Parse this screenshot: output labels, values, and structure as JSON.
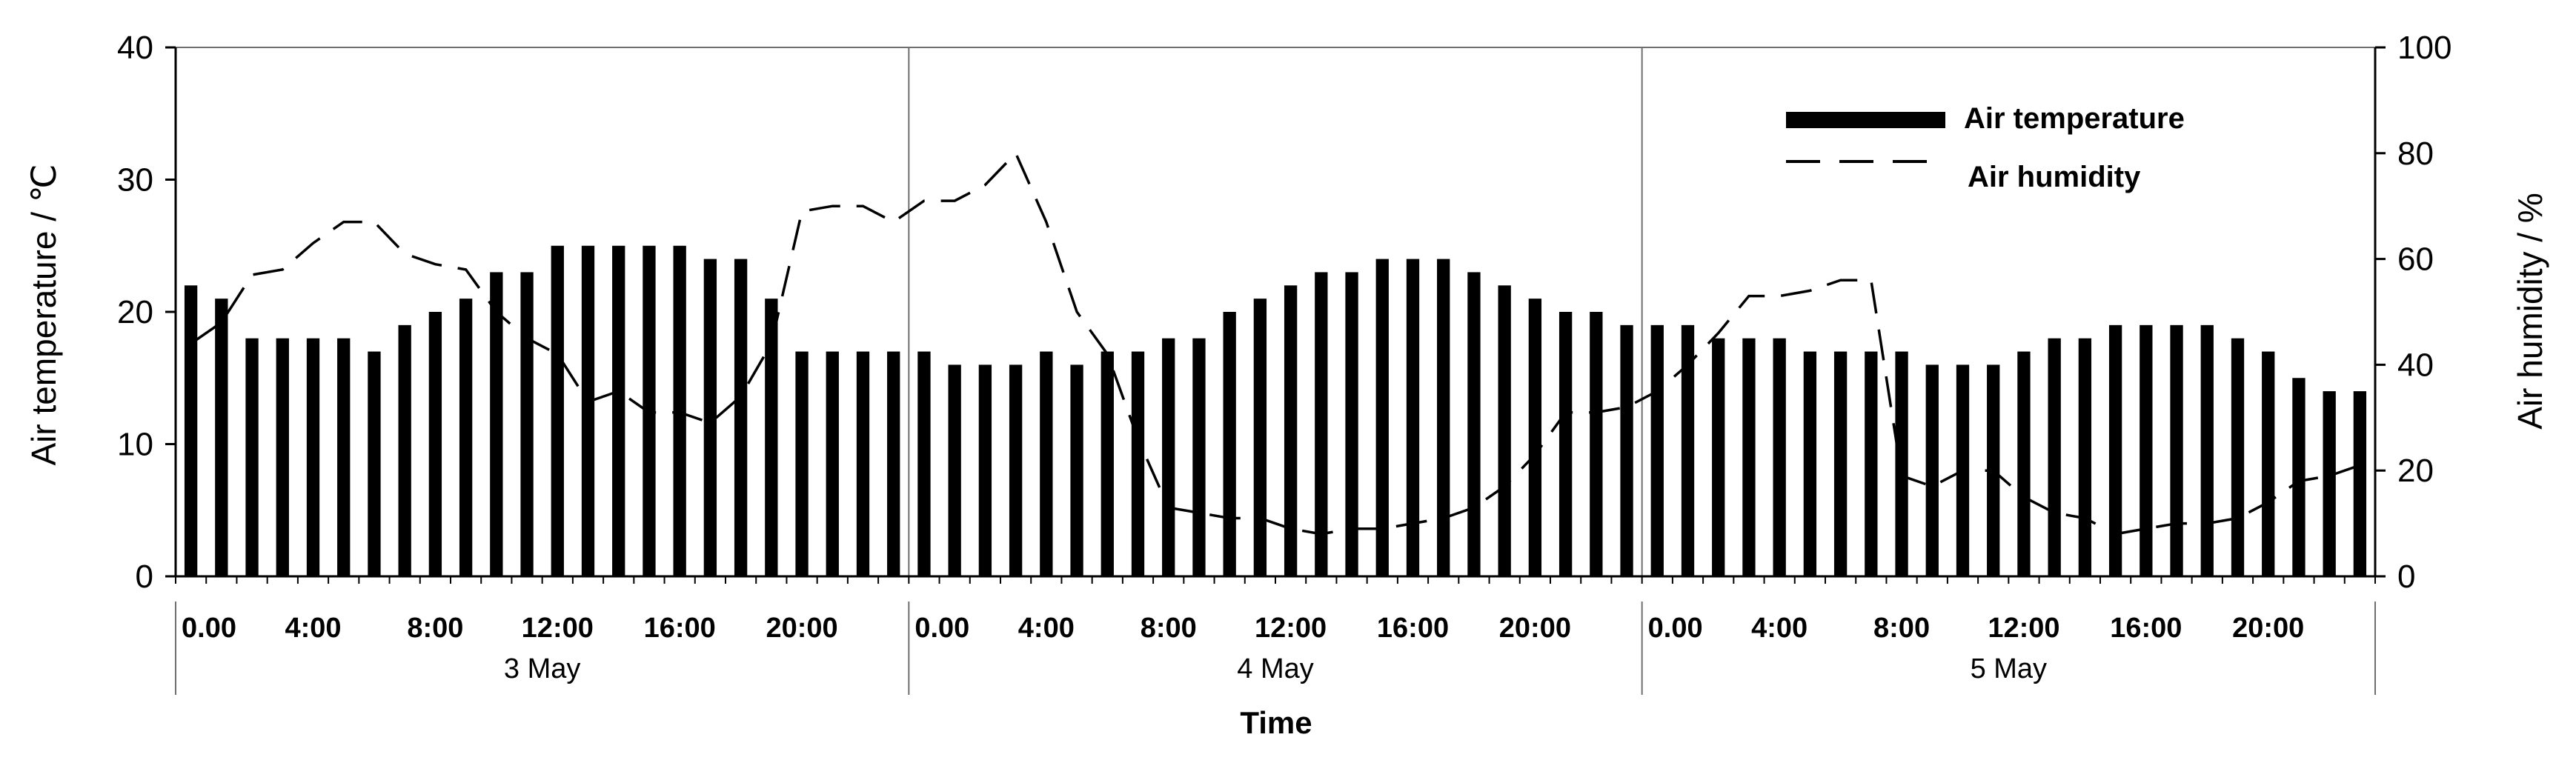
{
  "chart_data": {
    "type": "bar",
    "ylabel_left": "Air temperature / ℃",
    "ylabel_right": "Air humidity / %",
    "xlabel": "Time",
    "ylim_left": [
      0,
      40
    ],
    "ylim_right": [
      0,
      100
    ],
    "yticks_left": [
      "0",
      "10",
      "20",
      "30",
      "40"
    ],
    "yticks_right": [
      "0",
      "20",
      "40",
      "60",
      "80",
      "100"
    ],
    "grid": false,
    "legend_position": "top-right",
    "x_tick_labels": [
      "0.00",
      "4:00",
      "8:00",
      "12:00",
      "16:00",
      "20:00"
    ],
    "days": [
      "3 May",
      "4 May",
      "5 May"
    ],
    "hours_per_day": 24,
    "series": [
      {
        "name": "Air temperature",
        "type": "bar",
        "axis": "left",
        "values": [
          22,
          21,
          18,
          18,
          18,
          18,
          17,
          19,
          20,
          21,
          23,
          23,
          25,
          25,
          25,
          25,
          25,
          24,
          24,
          21,
          17,
          17,
          17,
          17,
          17,
          16,
          16,
          16,
          17,
          16,
          17,
          17,
          18,
          18,
          20,
          21,
          22,
          23,
          23,
          24,
          24,
          24,
          23,
          22,
          21,
          20,
          20,
          19,
          19,
          19,
          18,
          18,
          18,
          17,
          17,
          17,
          17,
          16,
          16,
          16,
          17,
          18,
          18,
          19,
          19,
          19,
          19,
          18,
          17,
          15,
          14,
          14
        ]
      },
      {
        "name": "Air humidity",
        "type": "line",
        "style": "dashed",
        "axis": "right",
        "values": [
          44,
          48,
          57,
          58,
          63,
          67,
          67,
          61,
          59,
          58,
          50,
          45,
          42,
          33,
          35,
          31,
          31,
          29,
          34,
          44,
          69,
          70,
          70,
          67,
          71,
          71,
          74,
          80,
          67,
          50,
          42,
          26,
          13,
          12,
          11,
          11,
          9,
          8,
          9,
          9,
          10,
          11,
          13,
          17,
          23,
          31,
          31,
          32,
          35,
          40,
          46,
          53,
          53,
          54,
          56,
          56,
          19,
          17,
          20,
          20,
          15,
          12,
          11,
          8,
          9,
          10,
          10,
          11,
          14,
          18,
          19,
          21
        ]
      }
    ]
  }
}
